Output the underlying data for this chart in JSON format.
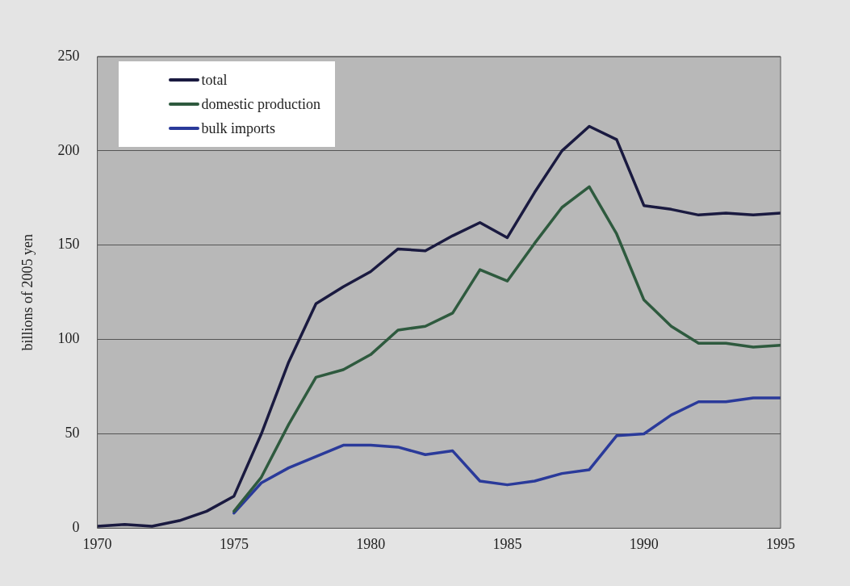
{
  "chart_data": {
    "type": "line",
    "ylabel": "billions of 2005 yen",
    "x": [
      1970,
      1971,
      1972,
      1973,
      1974,
      1975,
      1976,
      1977,
      1978,
      1979,
      1980,
      1981,
      1982,
      1983,
      1984,
      1985,
      1986,
      1987,
      1988,
      1989,
      1990,
      1991,
      1992,
      1993,
      1994,
      1995
    ],
    "series": [
      {
        "name": "total",
        "color": "#1a1a40",
        "values": [
          1,
          2,
          1,
          4,
          9,
          17,
          50,
          88,
          119,
          128,
          136,
          148,
          147,
          155,
          162,
          154,
          178,
          200,
          213,
          206,
          171,
          169,
          166,
          167,
          166,
          167
        ]
      },
      {
        "name": "domestic production",
        "color": "#2e5a3e",
        "values": [
          null,
          null,
          null,
          null,
          null,
          9,
          27,
          55,
          80,
          84,
          92,
          105,
          107,
          114,
          137,
          131,
          151,
          170,
          181,
          156,
          121,
          107,
          98,
          98,
          96,
          97
        ]
      },
      {
        "name": "bulk imports",
        "color": "#2a3a9a",
        "values": [
          null,
          null,
          null,
          null,
          null,
          8,
          24,
          32,
          38,
          44,
          44,
          43,
          39,
          41,
          25,
          23,
          25,
          29,
          31,
          49,
          50,
          60,
          67,
          67,
          69,
          69
        ]
      }
    ],
    "xlim": [
      1970,
      1995
    ],
    "xticks": [
      1970,
      1975,
      1980,
      1985,
      1990,
      1995
    ],
    "ylim": [
      0,
      250
    ],
    "yticks": [
      0,
      50,
      100,
      150,
      200,
      250
    ],
    "grid": "y",
    "legend": "top left",
    "marker": "none",
    "line_style": "solid"
  }
}
